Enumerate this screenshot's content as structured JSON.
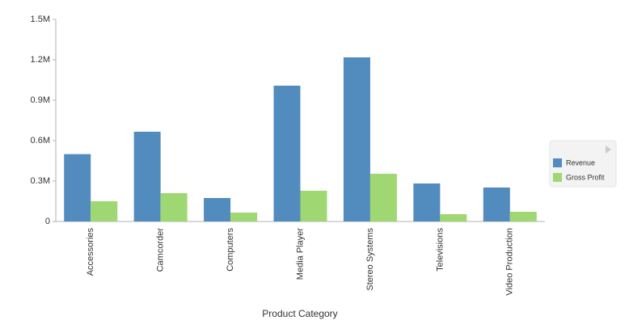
{
  "chart_data": {
    "type": "bar",
    "x_label": "Product Category",
    "categories": [
      "Accessories",
      "Camcorder",
      "Computers",
      "Media Player",
      "Stereo Systems",
      "Televisions",
      "Video Production"
    ],
    "series": [
      {
        "name": "Revenue",
        "color": "#528cbe",
        "values": [
          500000,
          666000,
          174000,
          1008000,
          1218000,
          282000,
          252000
        ]
      },
      {
        "name": "Gross Profit",
        "color": "#9fd872",
        "values": [
          150000,
          210000,
          66000,
          228000,
          354000,
          54000,
          72000
        ]
      }
    ],
    "ylim": [
      0,
      1500000
    ],
    "yticks": [
      0,
      {
        "value": 300000,
        "label": "0.3M"
      },
      {
        "value": 600000,
        "label": "0.6M"
      },
      {
        "value": 900000,
        "label": "0.9M"
      },
      {
        "value": 1200000,
        "label": "1.2M"
      },
      {
        "value": 1500000,
        "label": "1.5M"
      }
    ],
    "grid": false,
    "legend": "right"
  }
}
